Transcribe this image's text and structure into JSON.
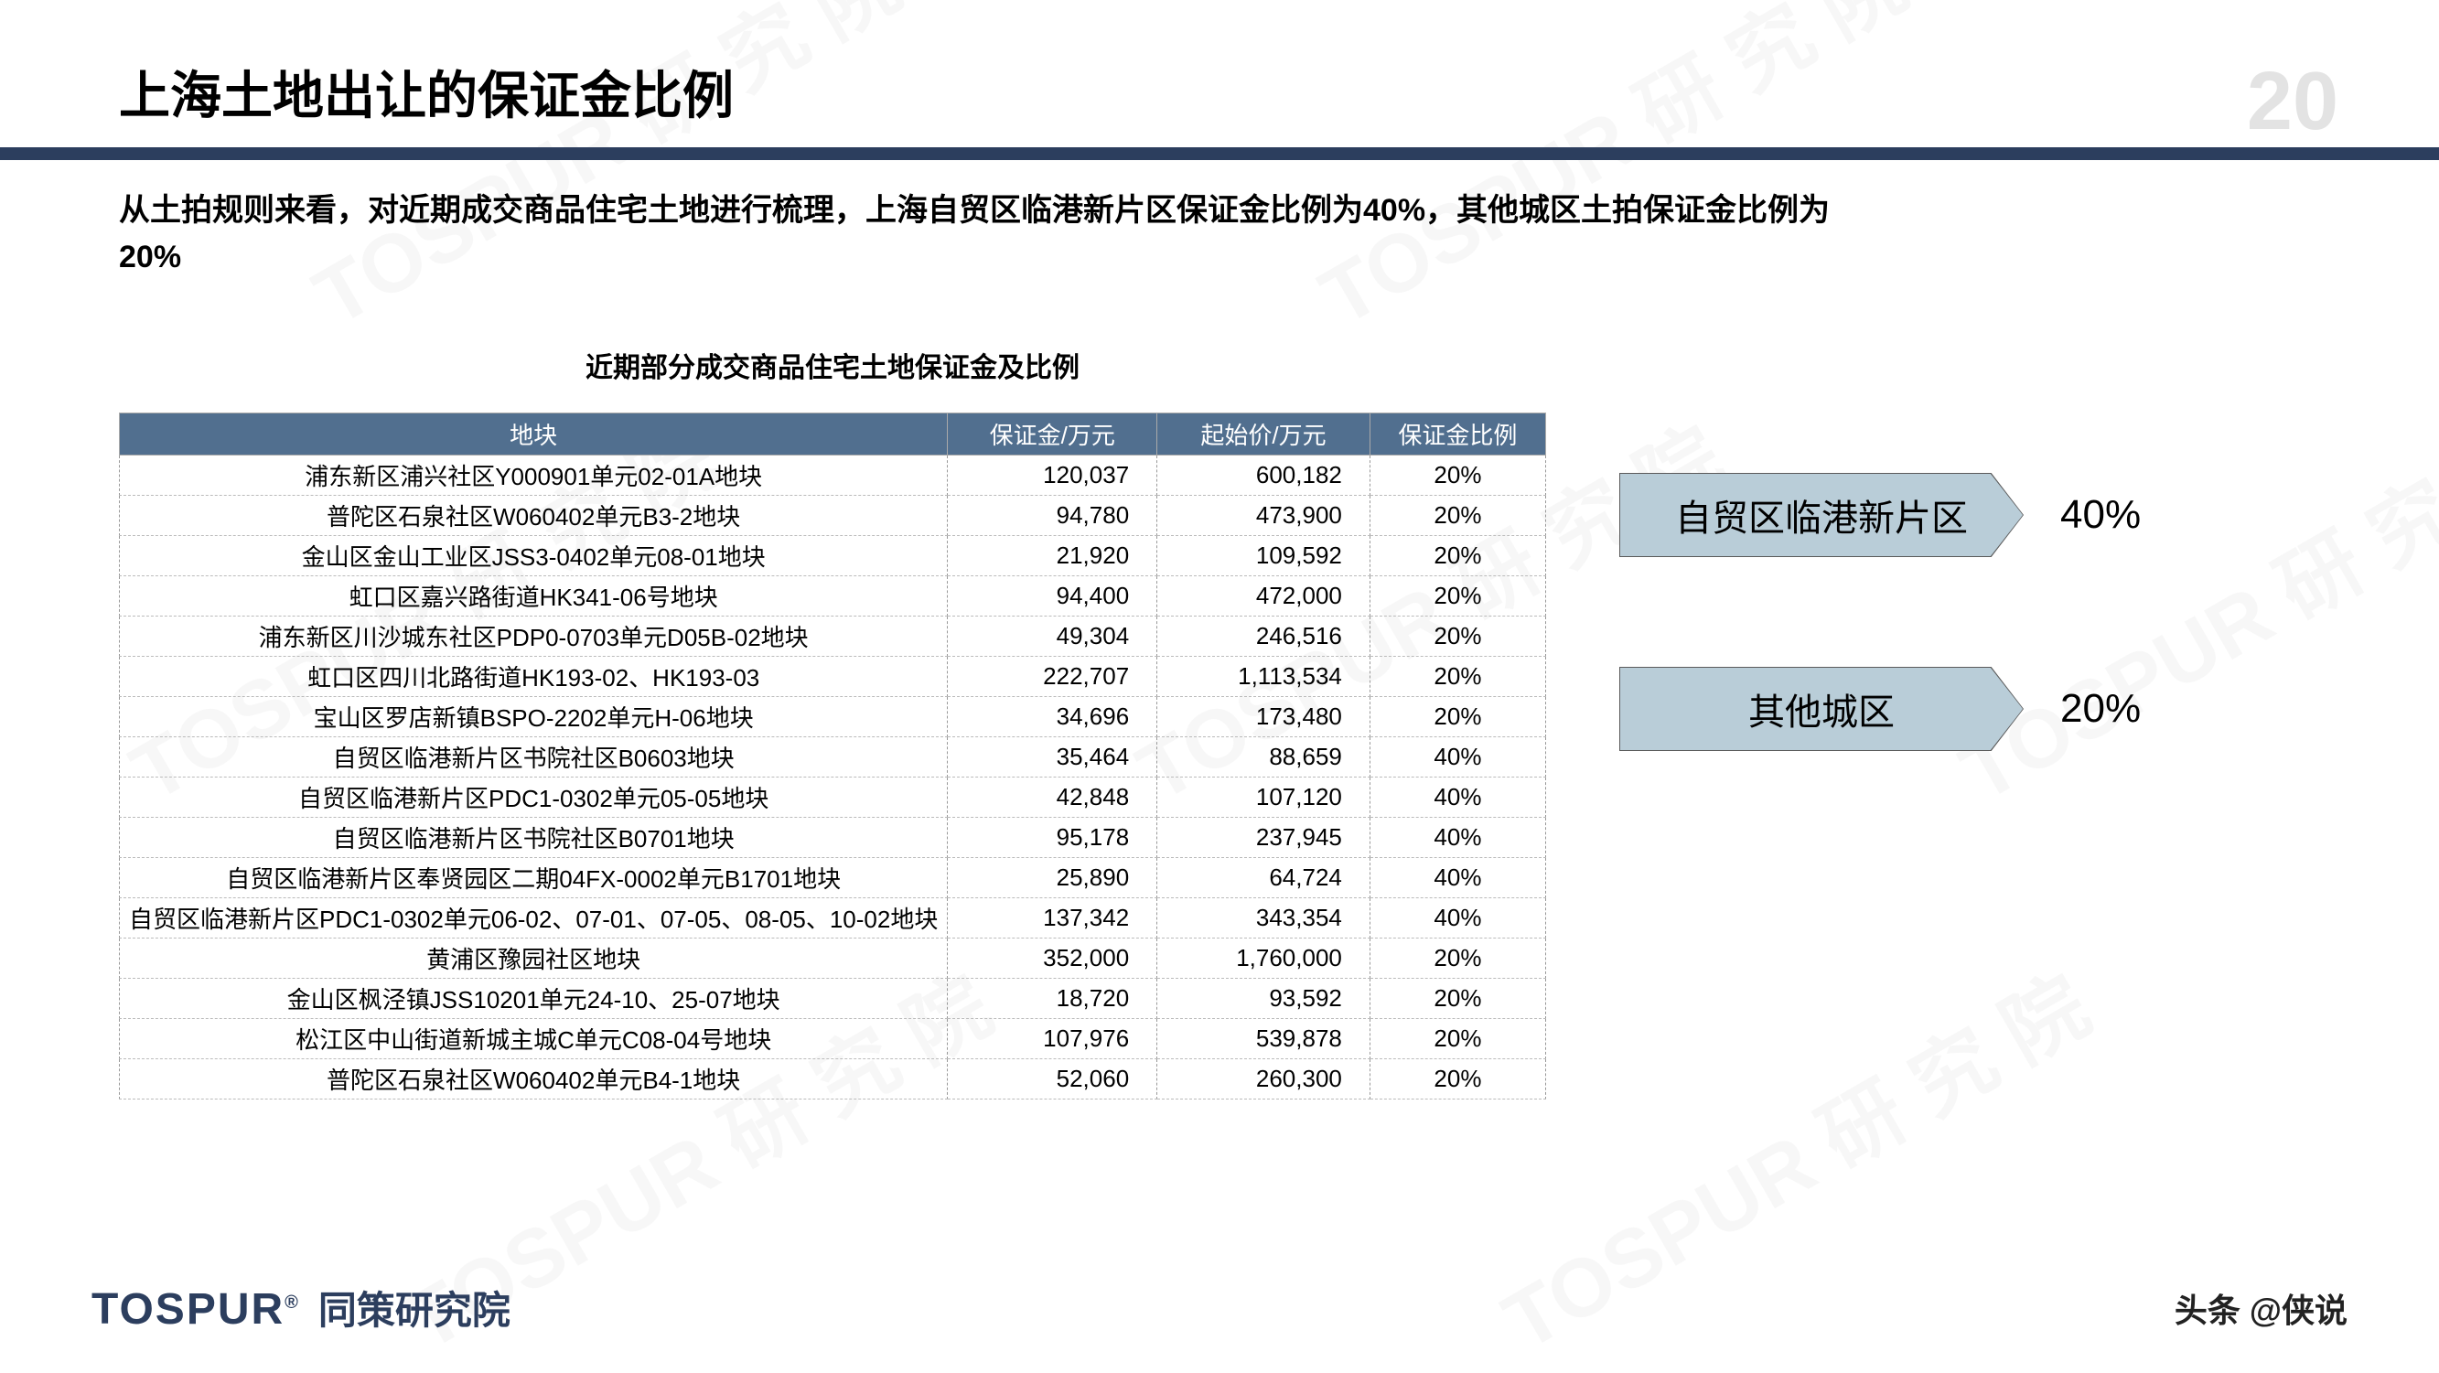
{
  "title": "上海土地出让的保证金比例",
  "subtitle": "从土拍规则来看，对近期成交商品住宅土地进行梳理，上海自贸区临港新片区保证金比例为40%，其他城区土拍保证金比例为20%",
  "table": {
    "caption": "近期部分成交商品住宅土地保证金及比例",
    "columns": [
      "地块",
      "保证金/万元",
      "起始价/万元",
      "保证金比例"
    ],
    "rows": [
      [
        "浦东新区浦兴社区Y000901单元02-01A地块",
        "120,037",
        "600,182",
        "20%"
      ],
      [
        "普陀区石泉社区W060402单元B3-2地块",
        "94,780",
        "473,900",
        "20%"
      ],
      [
        "金山区金山工业区JSS3-0402单元08-01地块",
        "21,920",
        "109,592",
        "20%"
      ],
      [
        "虹口区嘉兴路街道HK341-06号地块",
        "94,400",
        "472,000",
        "20%"
      ],
      [
        "浦东新区川沙城东社区PDP0-0703单元D05B-02地块",
        "49,304",
        "246,516",
        "20%"
      ],
      [
        "虹口区四川北路街道HK193-02、HK193-03",
        "222,707",
        "1,113,534",
        "20%"
      ],
      [
        "宝山区罗店新镇BSPO-2202单元H-06地块",
        "34,696",
        "173,480",
        "20%"
      ],
      [
        "自贸区临港新片区书院社区B0603地块",
        "35,464",
        "88,659",
        "40%"
      ],
      [
        "自贸区临港新片区PDC1-0302单元05-05地块",
        "42,848",
        "107,120",
        "40%"
      ],
      [
        "自贸区临港新片区书院社区B0701地块",
        "95,178",
        "237,945",
        "40%"
      ],
      [
        "自贸区临港新片区奉贤园区二期04FX-0002单元B1701地块",
        "25,890",
        "64,724",
        "40%"
      ],
      [
        "自贸区临港新片区PDC1-0302单元06-02、07-01、07-05、08-05、10-02地块",
        "137,342",
        "343,354",
        "40%"
      ],
      [
        "黄浦区豫园社区地块",
        "352,000",
        "1,760,000",
        "20%"
      ],
      [
        "金山区枫泾镇JSS10201单元24-10、25-07地块",
        "18,720",
        "93,592",
        "20%"
      ],
      [
        "松江区中山街道新城主城C单元C08-04号地块",
        "107,976",
        "539,878",
        "20%"
      ],
      [
        "普陀区石泉社区W060402单元B4-1地块",
        "52,060",
        "260,300",
        "20%"
      ]
    ],
    "header_bg": "#516f8f",
    "header_text_color": "#ffffff",
    "border_color": "#999999",
    "fontsize": 26
  },
  "callouts": [
    {
      "label": "自贸区临港新片区",
      "value": "40%",
      "bg_color": "#b9cdd8"
    },
    {
      "label": "其他城区",
      "value": "20%",
      "bg_color": "#b9cdd8"
    }
  ],
  "brand": {
    "en": "TOSPUR",
    "cn": "同策研究院"
  },
  "source": "头条 @侠说",
  "corner_logo": "20",
  "colors": {
    "divider": "#2c3e5e",
    "title": "#000000",
    "background": "#ffffff"
  }
}
